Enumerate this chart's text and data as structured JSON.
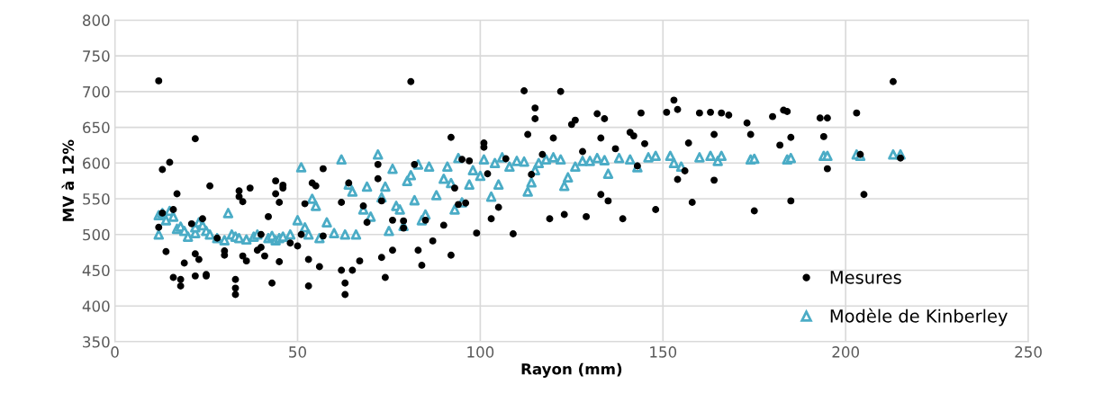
{
  "chart_data": {
    "type": "scatter",
    "xlabel": "Rayon (mm)",
    "ylabel": "MV à 12%",
    "xlim": [
      0,
      250
    ],
    "xticks": [
      0,
      50,
      100,
      150,
      200,
      250
    ],
    "ylim": [
      350,
      800
    ],
    "yticks": [
      350,
      400,
      450,
      500,
      550,
      600,
      650,
      700,
      750,
      800
    ],
    "grid": true,
    "legend": "bottom right",
    "series": [
      {
        "name": "Mesures",
        "color": "#000000",
        "marker": "circle",
        "x": [
          12,
          13,
          15,
          13,
          12,
          14,
          16,
          17,
          16,
          18,
          18,
          19,
          22,
          21,
          22,
          22,
          23,
          24,
          25,
          26,
          25,
          28,
          30,
          30,
          34,
          34,
          33,
          33,
          33,
          35,
          35,
          36,
          37,
          39,
          40,
          40,
          41,
          42,
          43,
          44,
          44,
          45,
          46,
          46,
          45,
          48,
          50,
          51,
          52,
          53,
          53,
          54,
          55,
          56,
          57,
          57,
          62,
          63,
          63,
          62,
          64,
          65,
          67,
          68,
          69,
          72,
          72,
          73,
          74,
          73,
          76,
          76,
          79,
          79,
          81,
          82,
          83,
          84,
          85,
          87,
          90,
          92,
          92,
          93,
          94,
          95,
          96,
          97,
          99,
          101,
          101,
          102,
          103,
          105,
          107,
          109,
          112,
          113,
          114,
          115,
          115,
          117,
          119,
          120,
          122,
          123,
          125,
          126,
          128,
          129,
          132,
          133,
          133,
          134,
          135,
          137,
          139,
          141,
          142,
          143,
          144,
          145,
          148,
          151,
          153,
          154,
          154,
          156,
          157,
          158,
          160,
          163,
          164,
          164,
          166,
          168,
          173,
          174,
          175,
          180,
          182,
          183,
          184,
          185,
          185,
          193,
          194,
          195,
          195,
          203,
          204,
          205,
          213,
          215
        ],
        "values": [
          715,
          591,
          601,
          530,
          510,
          476,
          535,
          557,
          440,
          437,
          428,
          460,
          634,
          515,
          473,
          442,
          465,
          522,
          442,
          568,
          444,
          495,
          471,
          477,
          561,
          553,
          437,
          425,
          416,
          546,
          470,
          463,
          565,
          478,
          500,
          482,
          470,
          525,
          432,
          575,
          557,
          545,
          569,
          565,
          462,
          488,
          484,
          500,
          543,
          465,
          428,
          572,
          568,
          455,
          592,
          498,
          450,
          432,
          416,
          545,
          572,
          450,
          463,
          540,
          517,
          598,
          578,
          547,
          440,
          468,
          478,
          520,
          519,
          509,
          714,
          598,
          478,
          457,
          520,
          491,
          513,
          636,
          471,
          565,
          542,
          605,
          544,
          603,
          502,
          628,
          622,
          585,
          522,
          538,
          606,
          501,
          701,
          640,
          584,
          677,
          662,
          612,
          522,
          635,
          700,
          528,
          654,
          660,
          616,
          525,
          669,
          635,
          556,
          662,
          547,
          620,
          522,
          643,
          638,
          596,
          670,
          627,
          535,
          671,
          688,
          675,
          577,
          589,
          628,
          545,
          670,
          671,
          576,
          640,
          670,
          667,
          656,
          640,
          533,
          665,
          625,
          674,
          672,
          636,
          547,
          663,
          637,
          663,
          592,
          670,
          612,
          556,
          714,
          607
        ]
      },
      {
        "name": "Modèle de Kinberley",
        "color": "#4bacc6",
        "marker": "triangle",
        "x": [
          12,
          12,
          13,
          14,
          15,
          16,
          17,
          18,
          19,
          20,
          22,
          22,
          23,
          24,
          25,
          26,
          28,
          30,
          31,
          32,
          33,
          34,
          36,
          38,
          39,
          42,
          43,
          44,
          45,
          46,
          48,
          50,
          51,
          52,
          53,
          54,
          55,
          56,
          58,
          60,
          62,
          63,
          64,
          65,
          66,
          68,
          69,
          70,
          72,
          73,
          74,
          75,
          76,
          77,
          78,
          79,
          80,
          81,
          82,
          83,
          84,
          85,
          86,
          88,
          90,
          91,
          92,
          93,
          94,
          95,
          97,
          98,
          100,
          101,
          103,
          104,
          105,
          106,
          108,
          110,
          112,
          113,
          114,
          115,
          116,
          118,
          120,
          122,
          123,
          124,
          126,
          128,
          130,
          132,
          134,
          135,
          138,
          141,
          143,
          146,
          148,
          152,
          153,
          155,
          160,
          163,
          165,
          166,
          174,
          175,
          184,
          185,
          194,
          195,
          203,
          204,
          213,
          215
        ],
        "values": [
          500,
          527,
          530,
          520,
          533,
          525,
          508,
          511,
          505,
          497,
          502,
          510,
          517,
          513,
          505,
          500,
          495,
          492,
          530,
          500,
          497,
          495,
          493,
          497,
          500,
          495,
          498,
          492,
          495,
          497,
          500,
          520,
          594,
          510,
          500,
          550,
          540,
          495,
          517,
          502,
          605,
          500,
          570,
          560,
          500,
          535,
          567,
          525,
          612,
          552,
          567,
          505,
          592,
          540,
          535,
          512,
          575,
          583,
          548,
          598,
          520,
          528,
          595,
          555,
          578,
          595,
          572,
          535,
          607,
          545,
          570,
          590,
          582,
          605,
          553,
          600,
          570,
          608,
          595,
          603,
          602,
          560,
          573,
          590,
          600,
          605,
          608,
          605,
          568,
          580,
          595,
          603,
          603,
          607,
          604,
          585,
          607,
          605,
          594,
          608,
          610,
          610,
          600,
          595,
          608,
          610,
          603,
          610,
          605,
          606,
          605,
          607,
          610,
          610,
          612,
          610,
          612,
          612
        ]
      }
    ]
  }
}
